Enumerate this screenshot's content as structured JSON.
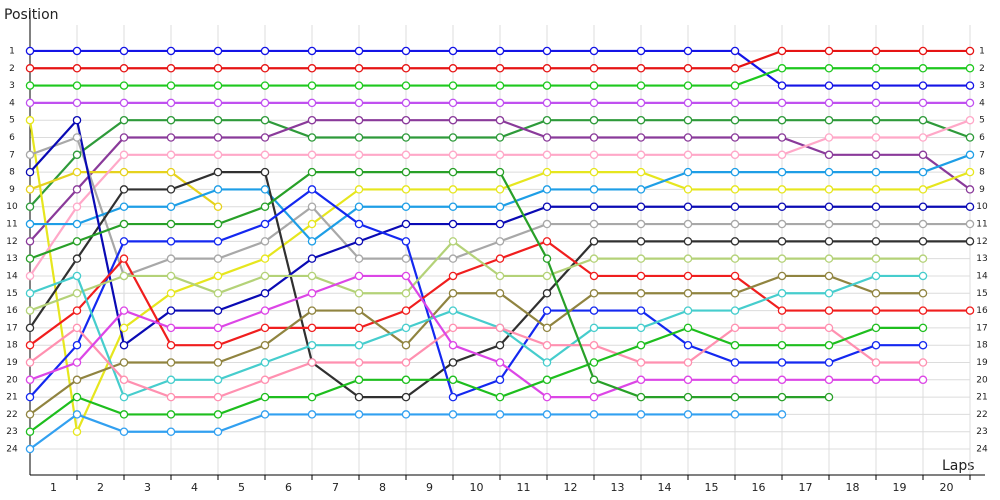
{
  "chart_data": {
    "type": "line",
    "x_label": "Laps",
    "y_label": "Position",
    "x": [
      0,
      1,
      2,
      3,
      4,
      5,
      6,
      7,
      8,
      9,
      10,
      11,
      12,
      13,
      14,
      15,
      16,
      17,
      18,
      19,
      20
    ],
    "xlim": [
      0,
      20
    ],
    "xticks": [
      1,
      2,
      3,
      4,
      5,
      6,
      7,
      8,
      9,
      10,
      11,
      12,
      13,
      14,
      15,
      16,
      17,
      18,
      19,
      20
    ],
    "ylim": [
      -0.5,
      25.5
    ],
    "y_inverted": true,
    "yticks": [
      1,
      2,
      3,
      4,
      5,
      6,
      7,
      8,
      9,
      10,
      11,
      12,
      13,
      14,
      15,
      16,
      17,
      18,
      19,
      20,
      21,
      22,
      23,
      24
    ],
    "grid": true,
    "series": [
      {
        "color": "#1414e6",
        "values": [
          1,
          1,
          1,
          1,
          1,
          1,
          1,
          1,
          1,
          1,
          1,
          1,
          1,
          1,
          1,
          1,
          3,
          3,
          3,
          3,
          3
        ]
      },
      {
        "color": "#e61414",
        "values": [
          2,
          2,
          2,
          2,
          2,
          2,
          2,
          2,
          2,
          2,
          2,
          2,
          2,
          2,
          2,
          2,
          1,
          1,
          1,
          1,
          1
        ]
      },
      {
        "color": "#1ec81e",
        "values": [
          3,
          3,
          3,
          3,
          3,
          3,
          3,
          3,
          3,
          3,
          3,
          3,
          3,
          3,
          3,
          3,
          2,
          2,
          2,
          2,
          2
        ]
      },
      {
        "color": "#c050f0",
        "values": [
          4,
          4,
          4,
          4,
          4,
          4,
          4,
          4,
          4,
          4,
          4,
          4,
          4,
          4,
          4,
          4,
          4,
          4,
          4,
          4,
          4
        ]
      },
      {
        "color": "#2e9a3a",
        "values": [
          10,
          7,
          5,
          5,
          5,
          5,
          6,
          6,
          6,
          6,
          6,
          5,
          5,
          5,
          5,
          5,
          5,
          5,
          5,
          5,
          6
        ]
      },
      {
        "color": "#8a3a9a",
        "values": [
          12,
          9,
          6,
          6,
          6,
          6,
          5,
          5,
          5,
          5,
          5,
          6,
          6,
          6,
          6,
          6,
          6,
          7,
          7,
          7,
          9
        ]
      },
      {
        "color": "#e6e61e",
        "values": [
          5,
          23,
          17,
          15,
          14,
          13,
          11,
          9,
          9,
          9,
          9,
          8,
          8,
          8,
          9,
          9,
          9,
          9,
          9,
          9,
          8
        ]
      },
      {
        "color": "#e6d21e",
        "values": [
          9,
          8,
          8,
          8,
          10,
          null,
          null,
          null,
          null,
          null,
          null,
          null,
          null,
          null,
          null,
          null,
          null,
          null,
          null,
          null,
          null
        ]
      },
      {
        "color": "#ffa8c8",
        "values": [
          14,
          10,
          7,
          7,
          7,
          7,
          7,
          7,
          7,
          7,
          7,
          7,
          7,
          7,
          7,
          7,
          7,
          6,
          6,
          6,
          5
        ]
      },
      {
        "color": "#a8a8a8",
        "values": [
          7,
          6,
          14,
          13,
          13,
          12,
          10,
          13,
          13,
          13,
          12,
          11,
          11,
          11,
          11,
          11,
          11,
          11,
          11,
          11,
          11
        ]
      },
      {
        "color": "#1e9ee6",
        "values": [
          11,
          11,
          10,
          10,
          9,
          9,
          12,
          10,
          10,
          10,
          10,
          9,
          9,
          9,
          8,
          8,
          8,
          8,
          8,
          8,
          7
        ]
      },
      {
        "color": "#303030",
        "values": [
          17,
          13,
          9,
          9,
          8,
          8,
          19,
          21,
          21,
          19,
          18,
          15,
          12,
          12,
          12,
          12,
          12,
          12,
          12,
          12,
          12
        ]
      },
      {
        "color": "#0a0ab4",
        "values": [
          8,
          5,
          18,
          16,
          16,
          15,
          13,
          12,
          11,
          11,
          11,
          10,
          10,
          10,
          10,
          10,
          10,
          10,
          10,
          10,
          10
        ]
      },
      {
        "color": "#1428f0",
        "values": [
          21,
          18,
          12,
          12,
          12,
          11,
          9,
          11,
          12,
          21,
          20,
          16,
          16,
          16,
          18,
          19,
          19,
          19,
          18,
          18,
          null
        ]
      },
      {
        "color": "#f01e1e",
        "values": [
          18,
          16,
          13,
          18,
          18,
          17,
          17,
          17,
          16,
          14,
          13,
          12,
          14,
          14,
          14,
          14,
          16,
          16,
          16,
          16,
          16
        ]
      },
      {
        "color": "#b4d278",
        "values": [
          16,
          15,
          14,
          14,
          15,
          14,
          14,
          15,
          15,
          12,
          14,
          14,
          13,
          13,
          13,
          13,
          13,
          13,
          13,
          13,
          null
        ]
      },
      {
        "color": "#908440",
        "values": [
          22,
          20,
          19,
          19,
          19,
          18,
          16,
          16,
          18,
          15,
          15,
          17,
          15,
          15,
          15,
          15,
          14,
          14,
          15,
          15,
          null
        ]
      },
      {
        "color": "#46cdcd",
        "values": [
          15,
          14,
          21,
          20,
          20,
          19,
          18,
          18,
          17,
          16,
          17,
          19,
          17,
          17,
          16,
          16,
          15,
          15,
          14,
          14,
          null
        ]
      },
      {
        "color": "#ff90b0",
        "values": [
          19,
          17,
          20,
          21,
          21,
          20,
          19,
          19,
          19,
          17,
          17,
          18,
          18,
          19,
          19,
          17,
          17,
          17,
          19,
          19,
          null
        ]
      },
      {
        "color": "#dc46e6",
        "values": [
          20,
          19,
          16,
          17,
          17,
          16,
          15,
          14,
          14,
          18,
          19,
          21,
          21,
          20,
          20,
          20,
          20,
          20,
          20,
          20,
          null
        ]
      },
      {
        "color": "#1ebe1e",
        "values": [
          23,
          21,
          22,
          22,
          22,
          21,
          21,
          20,
          20,
          20,
          21,
          20,
          19,
          18,
          17,
          18,
          18,
          18,
          17,
          17,
          null
        ]
      },
      {
        "color": "#28a028",
        "values": [
          13,
          12,
          11,
          11,
          11,
          10,
          8,
          8,
          8,
          8,
          8,
          13,
          20,
          21,
          21,
          21,
          21,
          21,
          null,
          null,
          null
        ]
      },
      {
        "color": "#32a0f0",
        "values": [
          24,
          22,
          23,
          23,
          23,
          22,
          22,
          22,
          22,
          22,
          22,
          22,
          22,
          22,
          22,
          22,
          22,
          null,
          null,
          null,
          null
        ]
      }
    ]
  }
}
